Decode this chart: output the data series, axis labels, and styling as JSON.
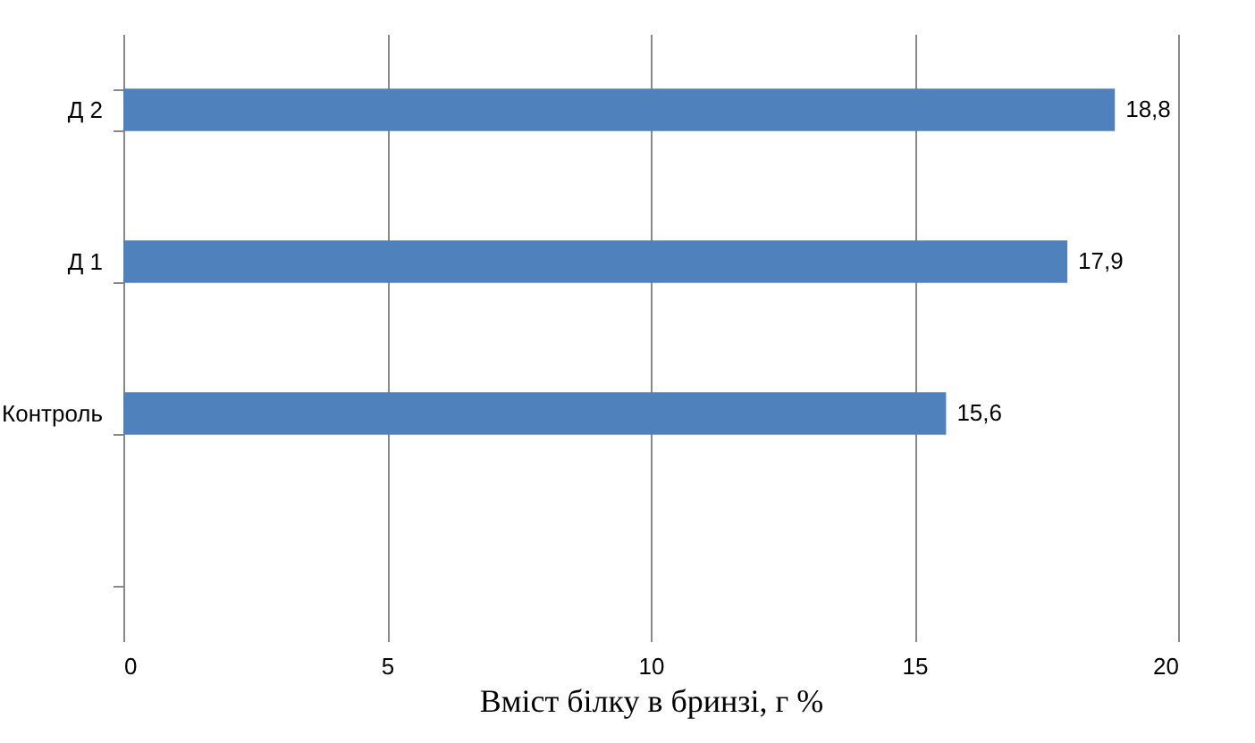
{
  "chart_data": {
    "type": "bar",
    "orientation": "horizontal",
    "xlabel": "Вміст білку в бринзі, г %",
    "categories": [
      "Д 2",
      "Д 1",
      "Контроль",
      null
    ],
    "values": [
      18.8,
      17.9,
      15.6,
      null
    ],
    "value_labels": [
      "18,8",
      "17,9",
      "15,6",
      null
    ],
    "color": "#4f81bd",
    "xlim": [
      0,
      20
    ],
    "xticks": [
      0,
      5,
      10,
      15,
      20
    ],
    "grid": "x"
  }
}
